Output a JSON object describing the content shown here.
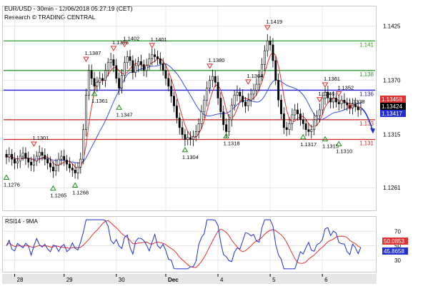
{
  "chart_data": [
    {
      "type": "candlestick",
      "title": "EUR/USD - 30min - 12/06/2018 05:27:19 (CET)",
      "subtitle": "Research © TRADING CENTRAL",
      "x_labels": [
        "28",
        "29",
        "30",
        "Dec",
        "4",
        "5",
        "6"
      ],
      "y_ticks": [
        1.1425,
        1.137,
        1.1315,
        1.1261
      ],
      "ylim": [
        1.1238,
        1.1445
      ],
      "grid": true,
      "levels": [
        {
          "value": 1.141,
          "label": "1.141",
          "color": "#2e9e2e"
        },
        {
          "value": 1.138,
          "label": "1.138",
          "color": "#2e9e2e"
        },
        {
          "value": 1.136,
          "label": "1.136",
          "color": "#2020d0"
        },
        {
          "value": 1.133,
          "label": "1.133",
          "color": "#d02020"
        },
        {
          "value": 1.131,
          "label": "1.131",
          "color": "#d02020"
        }
      ],
      "price_tags": [
        {
          "value": 1.13458,
          "label": "1.13458",
          "color": "#e03030"
        },
        {
          "value": 1.13424,
          "label": "1.13424",
          "color": "#000000"
        },
        {
          "value": 1.13417,
          "label": "1.13417",
          "color": "#1f2fd0"
        }
      ],
      "swing_labels": [
        {
          "label": "1.1276",
          "kind": "low"
        },
        {
          "label": "1.1301",
          "kind": "high"
        },
        {
          "label": "1.1265",
          "kind": "low"
        },
        {
          "label": "1.1268",
          "kind": "low"
        },
        {
          "label": "1.1387",
          "kind": "high"
        },
        {
          "label": "1.1361",
          "kind": "low"
        },
        {
          "label": "1.1398",
          "kind": "high"
        },
        {
          "label": "1.1402",
          "kind": "high"
        },
        {
          "label": "1.1347",
          "kind": "low"
        },
        {
          "label": "1.1401",
          "kind": "high"
        },
        {
          "label": "1.1304",
          "kind": "low"
        },
        {
          "label": "1.1380",
          "kind": "high"
        },
        {
          "label": "1.1318",
          "kind": "low"
        },
        {
          "label": "1.1364",
          "kind": "high"
        },
        {
          "label": "1.1419",
          "kind": "high"
        },
        {
          "label": "1.1317",
          "kind": "low"
        },
        {
          "label": "1.1346",
          "kind": "high"
        },
        {
          "label": "1.1315",
          "kind": "low"
        },
        {
          "label": "1.1361",
          "kind": "high"
        },
        {
          "label": "1.1310",
          "kind": "low"
        },
        {
          "label": "1.1352",
          "kind": "high"
        },
        {
          "label": "1.1338",
          "kind": "high"
        }
      ],
      "series": [
        {
          "type": "candles",
          "values": [
            1.1292,
            1.1295,
            1.129,
            1.1286,
            1.1288,
            1.1293,
            1.1296,
            1.1291,
            1.1287,
            1.1284,
            1.1288,
            1.1293,
            1.1297,
            1.1294,
            1.129,
            1.1286,
            1.1282,
            1.1278,
            1.1284,
            1.129,
            1.1293,
            1.1289,
            1.1285,
            1.1281,
            1.1279,
            1.1276,
            1.1282,
            1.129,
            1.132,
            1.1355,
            1.138,
            1.1372,
            1.1364,
            1.1368,
            1.1372,
            1.137,
            1.138,
            1.1388,
            1.1391,
            1.1385,
            1.1372,
            1.1362,
            1.1375,
            1.1388,
            1.1394,
            1.139,
            1.1378,
            1.1385,
            1.1389,
            1.1386,
            1.138,
            1.1385,
            1.1392,
            1.1396,
            1.1394,
            1.1392,
            1.1387,
            1.138,
            1.1372,
            1.1364,
            1.1354,
            1.1344,
            1.1332,
            1.1322,
            1.1315,
            1.131,
            1.1312,
            1.131,
            1.1313,
            1.1318,
            1.1326,
            1.1338,
            1.135,
            1.1362,
            1.137,
            1.1374,
            1.1368,
            1.1352,
            1.1338,
            1.1325,
            1.1318,
            1.133,
            1.1345,
            1.1355,
            1.1358,
            1.1354,
            1.1348,
            1.1344,
            1.135,
            1.1356,
            1.136,
            1.1366,
            1.1374,
            1.1386,
            1.14,
            1.141,
            1.1406,
            1.139,
            1.137,
            1.135,
            1.1336,
            1.1322,
            1.132,
            1.1326,
            1.1335,
            1.134,
            1.1336,
            1.133,
            1.1326,
            1.132,
            1.1318,
            1.132,
            1.133,
            1.1334,
            1.134,
            1.1352,
            1.1358,
            1.1352,
            1.1348,
            1.1352,
            1.1348,
            1.1346,
            1.135,
            1.1347,
            1.1345,
            1.1342,
            1.1346,
            1.1343,
            1.134,
            1.1342
          ]
        },
        {
          "type": "moving-average",
          "name": "fast",
          "color": "#e03030"
        },
        {
          "type": "moving-average",
          "name": "slow",
          "color": "#3a4fe0"
        }
      ]
    },
    {
      "type": "line",
      "title": "RSI14 - 9MA",
      "x_labels": [
        "28",
        "29",
        "30",
        "Dec",
        "4",
        "5",
        "6"
      ],
      "y_ticks": [
        70,
        50,
        30
      ],
      "ylim": [
        14,
        90
      ],
      "grid": true,
      "value_tags": [
        {
          "value": 50.0853,
          "label": "50.0853",
          "color": "#e03030"
        },
        {
          "value": 45.8658,
          "label": "45.8658",
          "color": "#1f2fd0"
        }
      ],
      "series": [
        {
          "name": "RSI14",
          "color": "#1f2fd0"
        },
        {
          "name": "9MA",
          "color": "#e03030"
        }
      ]
    }
  ]
}
